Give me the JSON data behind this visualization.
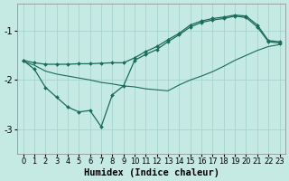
{
  "xlabel": "Humidex (Indice chaleur)",
  "xlim": [
    -0.5,
    23.5
  ],
  "ylim": [
    -3.5,
    -0.45
  ],
  "yticks": [
    -3,
    -2,
    -1
  ],
  "xticks": [
    0,
    1,
    2,
    3,
    4,
    5,
    6,
    7,
    8,
    9,
    10,
    11,
    12,
    13,
    14,
    15,
    16,
    17,
    18,
    19,
    20,
    21,
    22,
    23
  ],
  "background_color": "#c5eae4",
  "grid_color": "#a0d0c8",
  "line_color": "#1a6b5a",
  "line_diag_x": [
    0,
    1,
    2,
    3,
    4,
    5,
    6,
    7,
    8,
    9,
    10,
    11,
    12,
    13,
    14,
    15,
    16,
    17,
    18,
    19,
    20,
    21,
    22,
    23
  ],
  "line_diag_y": [
    -1.62,
    -1.7,
    -1.82,
    -1.88,
    -1.92,
    -1.96,
    -2.0,
    -2.05,
    -2.08,
    -2.12,
    -2.14,
    -2.18,
    -2.2,
    -2.22,
    -2.1,
    -2.0,
    -1.92,
    -1.83,
    -1.72,
    -1.6,
    -1.5,
    -1.4,
    -1.32,
    -1.28
  ],
  "line_upper_x": [
    0,
    1,
    2,
    3,
    4,
    5,
    6,
    7,
    8,
    9,
    10,
    11,
    12,
    13,
    14,
    15,
    16,
    17,
    18,
    19,
    20,
    21,
    22,
    23
  ],
  "line_upper_y": [
    -1.6,
    -1.65,
    -1.68,
    -1.68,
    -1.68,
    -1.67,
    -1.67,
    -1.66,
    -1.65,
    -1.65,
    -1.55,
    -1.42,
    -1.32,
    -1.18,
    -1.05,
    -0.88,
    -0.8,
    -0.75,
    -0.72,
    -0.68,
    -0.7,
    -0.88,
    -1.2,
    -1.22
  ],
  "line_lower_x": [
    0,
    1,
    2,
    3,
    4,
    5,
    6,
    7,
    8,
    9,
    10,
    11,
    12,
    13,
    14,
    15,
    16,
    17,
    18,
    19,
    20,
    21,
    22,
    23
  ],
  "line_lower_y": [
    -1.6,
    -1.78,
    -2.15,
    -2.35,
    -2.55,
    -2.65,
    -2.62,
    -2.95,
    -2.3,
    -2.12,
    -1.6,
    -1.48,
    -1.38,
    -1.22,
    -1.08,
    -0.92,
    -0.83,
    -0.78,
    -0.75,
    -0.7,
    -0.73,
    -0.92,
    -1.22,
    -1.25
  ],
  "title_fontsize": 7,
  "label_fontsize": 7.5,
  "tick_fontsize": 6
}
